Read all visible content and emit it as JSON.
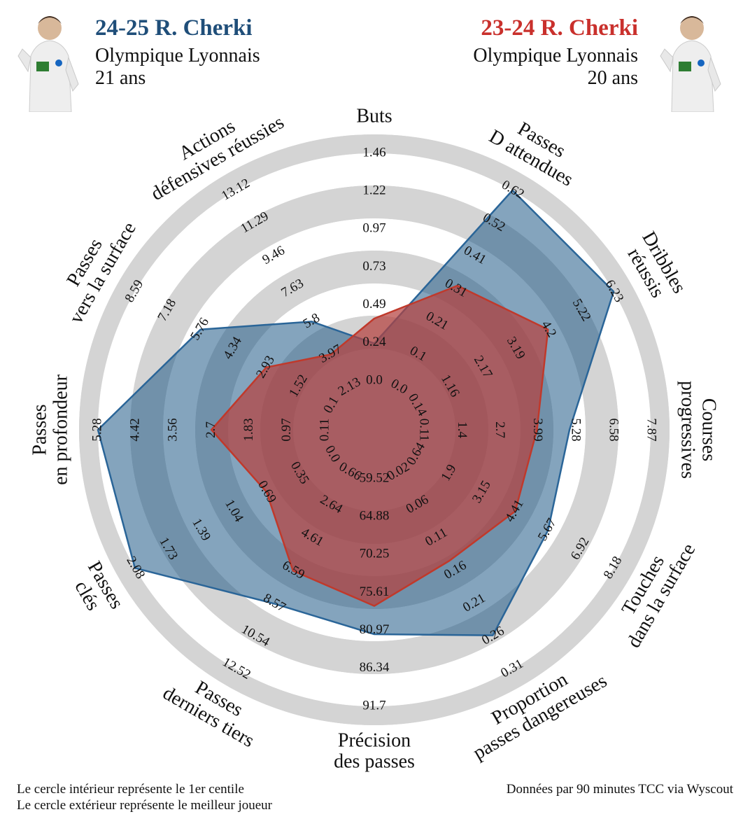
{
  "header": {
    "left": {
      "title": "24-25 R. Cherki",
      "club": "Olympique Lyonnais",
      "age": "21 ans",
      "color": "#1f4e79"
    },
    "right": {
      "title": "23-24 R. Cherki",
      "club": "Olympique Lyonnais",
      "age": "20 ans",
      "color": "#c9302c"
    }
  },
  "footer": {
    "note1": "Le cercle intérieur représente le 1er centile",
    "note2": "Le cercle extérieur représente le meilleur joueur",
    "source": "Données par 90 minutes TCC via Wyscout"
  },
  "chart_data": {
    "type": "radar",
    "axes": [
      {
        "label": [
          "Buts"
        ],
        "ticks": [
          "0.0",
          "0.24",
          "0.49",
          "0.73",
          "0.97",
          "1.22",
          "1.46"
        ],
        "series_2425": 0.24,
        "series_2324": 0.4
      },
      {
        "label": [
          "Passes",
          "D attendues"
        ],
        "ticks": [
          "0.0",
          "0.1",
          "0.21",
          "0.31",
          "0.41",
          "0.52",
          "0.62"
        ],
        "series_2425": 0.62,
        "series_2324": 0.32
      },
      {
        "label": [
          "Dribbles",
          "réussis"
        ],
        "ticks": [
          "0.14",
          "1.16",
          "2.17",
          "3.19",
          "4.2",
          "5.22",
          "6.23"
        ],
        "series_2425": 6.23,
        "series_2324": 4.2
      },
      {
        "label": [
          "Courses",
          "progressives"
        ],
        "ticks": [
          "0.11",
          "1.4",
          "2.7",
          "3.99",
          "5.28",
          "6.58",
          "7.87"
        ],
        "series_2425": 5.1,
        "series_2324": 3.99
      },
      {
        "label": [
          "Touches",
          "dans la surface"
        ],
        "ticks": [
          "0.64",
          "1.9",
          "3.15",
          "4.41",
          "5.67",
          "6.92",
          "8.18"
        ],
        "series_2425": 5.67,
        "series_2324": 4.41
      },
      {
        "label": [
          "Proportion",
          "passes dangereuses"
        ],
        "ticks": [
          "0.02",
          "0.06",
          "0.11",
          "0.16",
          "0.21",
          "0.26",
          "0.31"
        ],
        "series_2425": 0.26,
        "series_2324": 0.15
      },
      {
        "label": [
          "Précision",
          "des passes"
        ],
        "ticks": [
          "59.52",
          "64.88",
          "70.25",
          "75.61",
          "80.97",
          "86.34",
          "91.7"
        ],
        "series_2425": 81.5,
        "series_2324": 77.5
      },
      {
        "label": [
          "Passes",
          "derniers tiers"
        ],
        "ticks": [
          "0.66",
          "2.64",
          "4.61",
          "6.59",
          "8.57",
          "10.54",
          "12.52"
        ],
        "series_2425": 8.57,
        "series_2324": 6.59
      },
      {
        "label": [
          "Passes",
          "clés"
        ],
        "ticks": [
          "0.0",
          "0.35",
          "0.69",
          "1.04",
          "1.39",
          "1.73",
          "2.08"
        ],
        "series_2425": 2.08,
        "series_2324": 0.69
      },
      {
        "label": [
          "Passes",
          "en profondeur"
        ],
        "ticks": [
          "0.11",
          "0.97",
          "1.83",
          "2.7",
          "3.56",
          "4.42",
          "5.28"
        ],
        "series_2425": 5.28,
        "series_2324": 2.7
      },
      {
        "label": [
          "Passes",
          "vers la surface"
        ],
        "ticks": [
          "0.1",
          "1.52",
          "2.93",
          "4.34",
          "5.76",
          "7.18",
          "8.59"
        ],
        "series_2425": 5.76,
        "series_2324": 2.93
      },
      {
        "label": [
          "Actions",
          "défensives réussies"
        ],
        "ticks": [
          "2.13",
          "3.97",
          "5.8",
          "7.63",
          "9.46",
          "11.29",
          "13.12"
        ],
        "series_2425": 5.8,
        "series_2324": 3.97
      }
    ],
    "series": [
      {
        "key": "series_2425",
        "fill": "#1f5a86",
        "stroke": "#2a6598"
      },
      {
        "key": "series_2324",
        "fill": "#b5413e",
        "stroke": "#c0392b"
      }
    ],
    "rings": {
      "light": "#d4d4d4",
      "dark": "#b8b8b8"
    }
  }
}
